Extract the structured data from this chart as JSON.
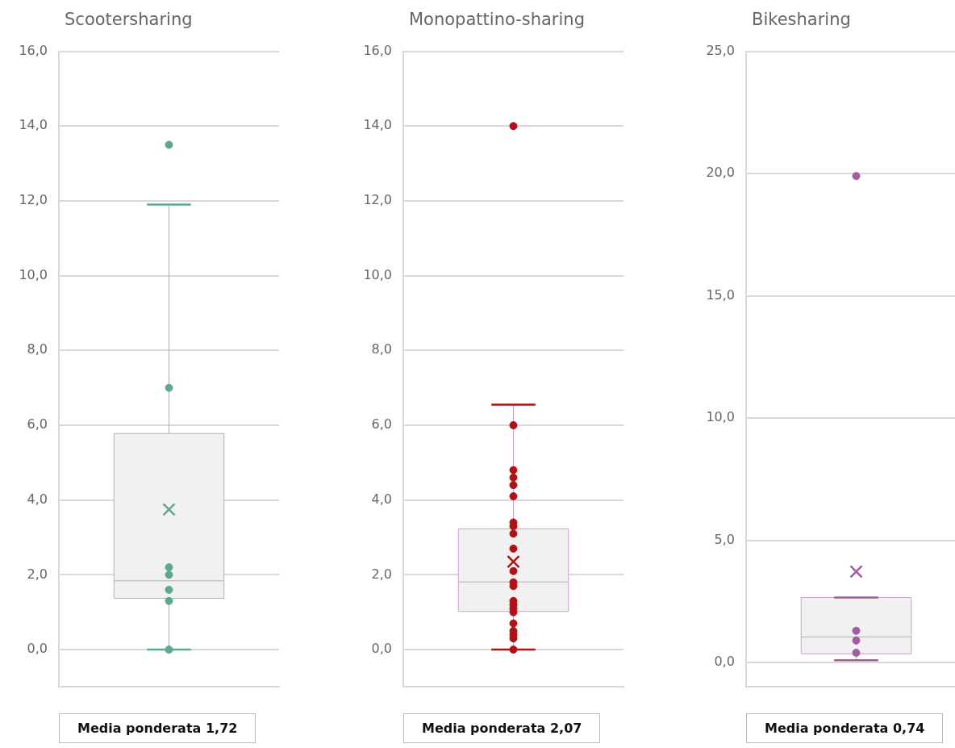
{
  "chart_data": [
    {
      "type": "box",
      "title": "Scootersharing",
      "categories": [
        null
      ],
      "ylim": [
        -1,
        16
      ],
      "yticks": [
        {
          "value": 0,
          "label": "0,0"
        },
        {
          "value": 2,
          "label": "2,0"
        },
        {
          "value": 4,
          "label": "4,0"
        },
        {
          "value": 6,
          "label": "6,0"
        },
        {
          "value": 8,
          "label": "8,0"
        },
        {
          "value": 10,
          "label": "10,0"
        },
        {
          "value": 12,
          "label": "12,0"
        },
        {
          "value": 14,
          "label": "14,0"
        },
        {
          "value": 16,
          "label": "16,0"
        }
      ],
      "grid": "y",
      "legend": false,
      "marker": "circle",
      "annotations": [
        "Media ponderata 1,72"
      ],
      "series": [
        {
          "color": "#f1f1f1",
          "boxes": [
            {
              "low": 0,
              "q1": 1.37,
              "median": 1.84,
              "q3": 5.78,
              "high": 11.9,
              "mean": 3.75
            }
          ]
        },
        {
          "type": "scatter",
          "color": "#5aab8a",
          "x": [
            null,
            null,
            null,
            null,
            null,
            null,
            null
          ],
          "values": [
            13.5,
            7.0,
            2.2,
            2.0,
            1.6,
            1.3,
            0.0
          ]
        }
      ]
    },
    {
      "type": "box",
      "title": "Monopattino-sharing",
      "categories": [
        null
      ],
      "ylim": [
        -1,
        16
      ],
      "yticks": [
        {
          "value": 0,
          "label": "0,0"
        },
        {
          "value": 2,
          "label": "2,0"
        },
        {
          "value": 4,
          "label": "4,0"
        },
        {
          "value": 6,
          "label": "6,0"
        },
        {
          "value": 8,
          "label": "8,0"
        },
        {
          "value": 10,
          "label": "10,0"
        },
        {
          "value": 12,
          "label": "12,0"
        },
        {
          "value": 14,
          "label": "14,0"
        },
        {
          "value": 16,
          "label": "16,0"
        }
      ],
      "grid": "y",
      "legend": false,
      "marker": "circle",
      "annotations": [
        "Media ponderata 2,07"
      ],
      "series": [
        {
          "color": "#f1f1f1",
          "boxes": [
            {
              "low": 0,
              "q1": 1.02,
              "median": 1.81,
              "q3": 3.23,
              "high": 6.55,
              "mean": 2.35
            }
          ]
        },
        {
          "type": "scatter",
          "color": "#b01116",
          "x": [
            null,
            null,
            null,
            null,
            null,
            null,
            null,
            null,
            null,
            null,
            null,
            null,
            null,
            null,
            null,
            null,
            null,
            null,
            null,
            null,
            null,
            null
          ],
          "values": [
            14.0,
            6.0,
            4.8,
            4.6,
            4.4,
            4.1,
            3.4,
            3.3,
            3.1,
            2.7,
            2.1,
            1.8,
            1.7,
            1.3,
            1.2,
            1.1,
            1.0,
            0.7,
            0.5,
            0.4,
            0.3,
            0.0
          ]
        }
      ]
    },
    {
      "type": "box",
      "title": "Bikesharing",
      "categories": [
        null
      ],
      "ylim": [
        -1,
        25
      ],
      "yticks": [
        {
          "value": 0,
          "label": "0,0"
        },
        {
          "value": 5,
          "label": "5,0"
        },
        {
          "value": 10,
          "label": "10,0"
        },
        {
          "value": 15,
          "label": "15,0"
        },
        {
          "value": 20,
          "label": "20,0"
        },
        {
          "value": 25,
          "label": "25,0"
        }
      ],
      "grid": "y",
      "legend": false,
      "marker": "circle",
      "annotations": [
        "Media ponderata 0,74"
      ],
      "series": [
        {
          "color": "#f1f1f1",
          "boxes": [
            {
              "low": 0.09,
              "q1": 0.36,
              "median": 1.05,
              "q3": 2.66,
              "high": 2.66,
              "mean": 3.72
            }
          ]
        },
        {
          "type": "scatter",
          "color": "#a05ea0",
          "x": [
            null,
            null,
            null,
            null
          ],
          "values": [
            19.9,
            1.3,
            0.9,
            0.4
          ]
        }
      ]
    }
  ]
}
